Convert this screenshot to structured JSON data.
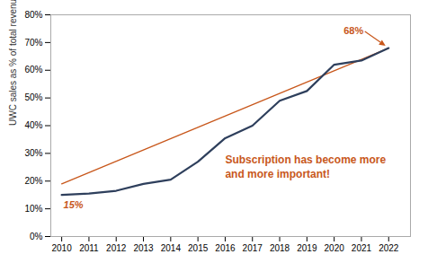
{
  "chart_data": {
    "type": "line",
    "x": [
      2010,
      2011,
      2012,
      2013,
      2014,
      2015,
      2016,
      2017,
      2018,
      2019,
      2020,
      2021,
      2022
    ],
    "series": [
      {
        "x": [
          2010,
          2022
        ],
        "values": [
          0.19,
          0.68
        ],
        "color": "#c8571b"
      },
      {
        "values": [
          0.15,
          0.155,
          0.165,
          0.19,
          0.205,
          0.27,
          0.355,
          0.4,
          0.49,
          0.525,
          0.62,
          0.635,
          0.68
        ],
        "color": "#2e3f5c"
      }
    ],
    "ylabel": "UWC sales as % of total revenues",
    "xlim": [
      2009.6,
      2022.8
    ],
    "xticks": [
      2010,
      2011,
      2012,
      2013,
      2014,
      2015,
      2016,
      2017,
      2018,
      2019,
      2020,
      2021,
      2022
    ],
    "ylim": [
      0,
      0.8
    ],
    "yticks": [
      {
        "value": 0.0,
        "label": "0%"
      },
      {
        "value": 0.1,
        "label": "10%"
      },
      {
        "value": 0.2,
        "label": "20%"
      },
      {
        "value": 0.3,
        "label": "30%"
      },
      {
        "value": 0.4,
        "label": "40%"
      },
      {
        "value": 0.5,
        "label": "50%"
      },
      {
        "value": 0.6,
        "label": "60%"
      },
      {
        "value": 0.7,
        "label": "70%"
      },
      {
        "value": 0.8,
        "label": "80%"
      }
    ],
    "grid": false,
    "annotations": [
      {
        "text": "15%",
        "x": 2010,
        "y": 0.15,
        "color": "#c8571b"
      },
      {
        "text": "68%",
        "x": 2022,
        "y": 0.68,
        "color": "#c8571b",
        "arrow": true
      },
      {
        "text": "Subscription has become more\nand more important!",
        "x": 2016.0,
        "y": 0.255,
        "color": "#c8571b"
      }
    ]
  }
}
